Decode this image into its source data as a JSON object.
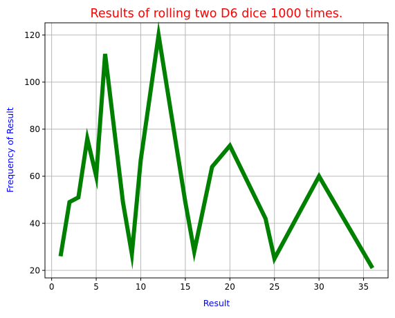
{
  "chart_data": {
    "type": "line",
    "title": "Results of rolling two D6 dice 1000 times.",
    "xlabel": "Result",
    "ylabel": "Frequency of Result",
    "xlim": [
      -0.75,
      37.75
    ],
    "ylim": [
      16.8,
      125.2
    ],
    "x_ticks": [
      0,
      5,
      10,
      15,
      20,
      25,
      30,
      35
    ],
    "y_ticks": [
      20,
      40,
      60,
      80,
      100,
      120
    ],
    "grid": true,
    "series": [
      {
        "color": "#008000",
        "x": [
          1,
          2,
          3,
          4,
          5,
          6,
          8,
          9,
          10,
          12,
          15,
          16,
          18,
          20,
          24,
          25,
          30,
          36
        ],
        "y": [
          26,
          49,
          51,
          76,
          60,
          112,
          49,
          27,
          67,
          120,
          49,
          28,
          64,
          73,
          42,
          25,
          60,
          21
        ]
      }
    ]
  },
  "colors": {
    "title": "#ff0000",
    "axis_label": "#0000ff",
    "line": "#008000",
    "grid": "#b0b0b0"
  }
}
